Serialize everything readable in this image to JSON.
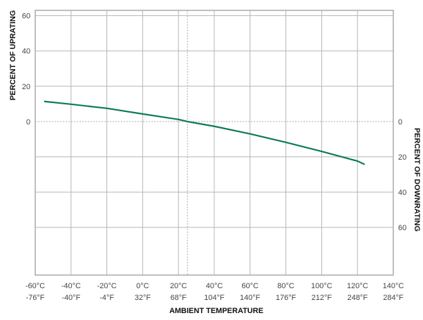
{
  "chart_data": {
    "type": "line",
    "title": "",
    "xlabel": "AMBIENT TEMPERATURE",
    "ylabel_left": "PERCENT OF UPRATING",
    "ylabel_right": "PERCENT OF DOWNRATING",
    "x_ticks": [
      {
        "c": "-60°C",
        "f": "-76°F",
        "value": -60
      },
      {
        "c": "-40°C",
        "f": "-40°F",
        "value": -40
      },
      {
        "c": "-20°C",
        "f": "-4°F",
        "value": -20
      },
      {
        "c": "0°C",
        "f": "32°F",
        "value": 0
      },
      {
        "c": "20°C",
        "f": "68°F",
        "value": 20
      },
      {
        "c": "40°C",
        "f": "104°F",
        "value": 40
      },
      {
        "c": "60°C",
        "f": "140°F",
        "value": 60
      },
      {
        "c": "80°C",
        "f": "176°F",
        "value": 80
      },
      {
        "c": "100°C",
        "f": "212°F",
        "value": 100
      },
      {
        "c": "120°C",
        "f": "248°F",
        "value": 120
      },
      {
        "c": "140°C",
        "f": "284°F",
        "value": 140
      }
    ],
    "left_ticks": [
      {
        "label": "60",
        "value": 60
      },
      {
        "label": "40",
        "value": 40
      },
      {
        "label": "20",
        "value": 20
      },
      {
        "label": "0",
        "value": 0
      }
    ],
    "right_ticks": [
      {
        "label": "0",
        "value": 0
      },
      {
        "label": "20",
        "value": -20
      },
      {
        "label": "40",
        "value": -40
      },
      {
        "label": "60",
        "value": -60
      }
    ],
    "xlim": [
      -60,
      140
    ],
    "ylim": [
      -87,
      63
    ],
    "grid": true,
    "reference_line_x": 25,
    "color": "#0e7a56",
    "series": [
      {
        "x": [
          -55,
          -40,
          -20,
          0,
          20,
          25,
          40,
          60,
          80,
          100,
          120,
          124
        ],
        "y": [
          11.4,
          9.8,
          7.5,
          4.3,
          1.2,
          0,
          -2.7,
          -7,
          -11.8,
          -16.9,
          -22.4,
          -24.3
        ]
      }
    ]
  }
}
